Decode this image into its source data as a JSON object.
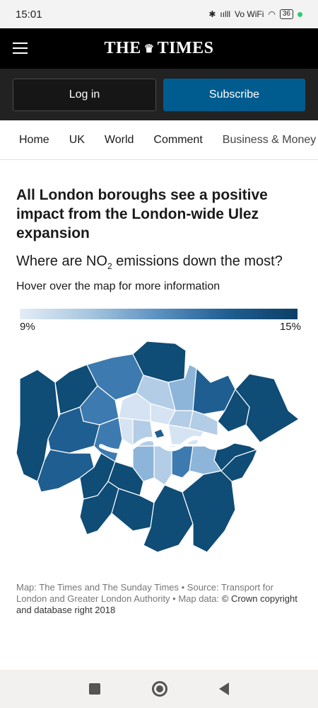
{
  "status": {
    "time": "15:01",
    "signal": "ıılll",
    "volte": "Vo WiFi",
    "battery": "36"
  },
  "masthead": {
    "logo_left": "THE",
    "logo_crest": "♛",
    "logo_right": "TIMES"
  },
  "account": {
    "login": "Log in",
    "subscribe": "Subscribe"
  },
  "nav": {
    "items": [
      "Home",
      "UK",
      "World",
      "Comment",
      "Business & Money"
    ]
  },
  "article": {
    "headline": "All London boroughs see a positive impact from the London-wide Ulez expansion",
    "subhead_prefix": "Where are NO",
    "subhead_sub": "2",
    "subhead_suffix": " emissions down the most?",
    "hint": "Hover over the map for more information"
  },
  "legend": {
    "min_label": "9%",
    "max_label": "15%",
    "colors": [
      "#e4ecf6",
      "#0c3f66"
    ]
  },
  "map": {
    "fills": {
      "darkest": "#0f4c76",
      "dark": "#1f5e91",
      "mid": "#3d7ab0",
      "light": "#8db5d9",
      "lighter": "#b3cde6",
      "lightest": "#d5e3f2",
      "river": "#ffffff"
    }
  },
  "caption": {
    "text": "Map: The Times and The Sunday Times • Source: Transport for London and Greater London Authority • Map data: ",
    "strong": "© Crown copyright and database right 2018"
  }
}
